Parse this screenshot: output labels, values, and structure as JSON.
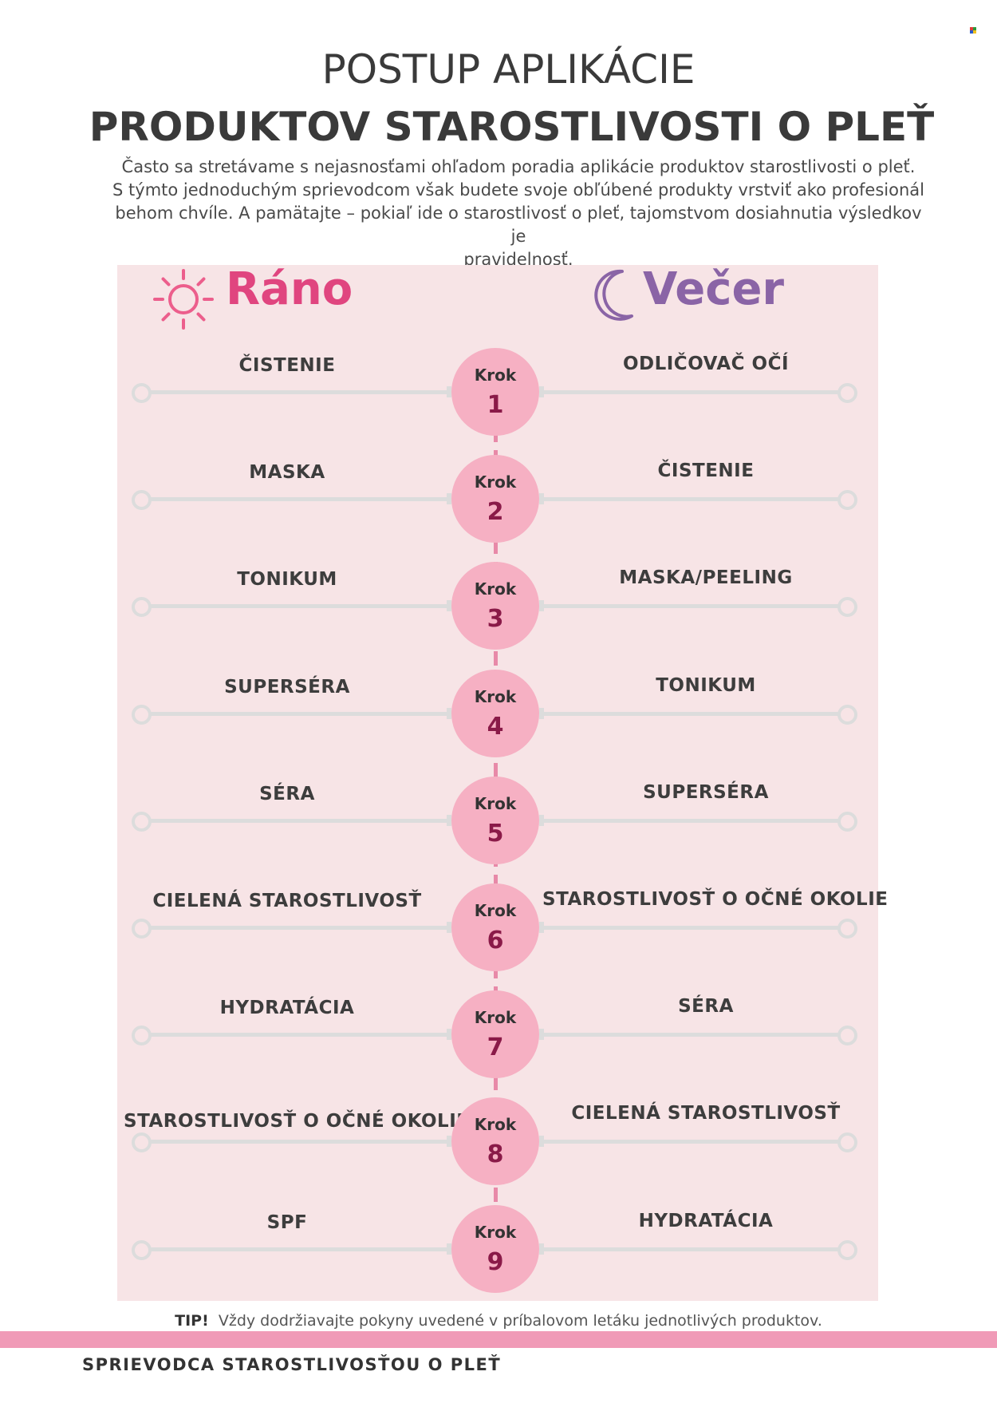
{
  "header": {
    "title_line1": "POSTUP APLIKÁCIE",
    "title_line2": "PRODUKTOV STAROSTLIVOSTI O PLEŤ",
    "intro_lines": [
      "Často sa stretávame s nejasnosťami ohľadom poradia aplikácie produktov starostlivosti o pleť.",
      "S týmto jednoduchým sprievodcom však budete svoje obľúbené produkty vrstviť ako profesionál",
      "behom chvíle. A pamätajte – pokiaľ ide o starostlivosť o pleť, tajomstvom dosiahnutia výsledkov je",
      "pravidelnosť."
    ]
  },
  "morning": {
    "label": "Ráno",
    "icon": "sun-icon",
    "color": "#e0457f"
  },
  "evening": {
    "label": "Večer",
    "icon": "moon-icon",
    "color": "#8a64a6"
  },
  "step_word": "Krok",
  "steps": [
    {
      "number": "1",
      "morning": "ČISTENIE",
      "evening": "ODLIČOVAČ OČÍ"
    },
    {
      "number": "2",
      "morning": "MASKA",
      "evening": "ČISTENIE"
    },
    {
      "number": "3",
      "morning": "TONIKUM",
      "evening": "MASKA/PEELING"
    },
    {
      "number": "4",
      "morning": "SUPERSÉRA",
      "evening": "TONIKUM"
    },
    {
      "number": "5",
      "morning": "SÉRA",
      "evening": "SUPERSÉRA"
    },
    {
      "number": "6",
      "morning": "CIELENÁ STAROSTLIVOSŤ",
      "evening": "STAROSTLIVOSŤ O OČNÉ OKOLIE"
    },
    {
      "number": "7",
      "morning": "HYDRATÁCIA",
      "evening": "SÉRA"
    },
    {
      "number": "8",
      "morning": "STAROSTLIVOSŤ O OČNÉ OKOLIE",
      "evening": "CIELENÁ STAROSTLIVOSŤ"
    },
    {
      "number": "9",
      "morning": "SPF",
      "evening": "HYDRATÁCIA"
    }
  ],
  "tip": {
    "label": "TIP!",
    "text": "Vždy dodržiavajte pokyny uvedené v príbalovom letáku jednotlivých produktov."
  },
  "footer": {
    "text": "SPRIEVODCA STAROSTLIVOSŤOU O PLEŤ"
  },
  "colors": {
    "panel": "#f7e4e6",
    "circle": "#f6b0c3",
    "step_number": "#8a1a48",
    "spine": "#e889a8",
    "band": "#f09ab7"
  }
}
